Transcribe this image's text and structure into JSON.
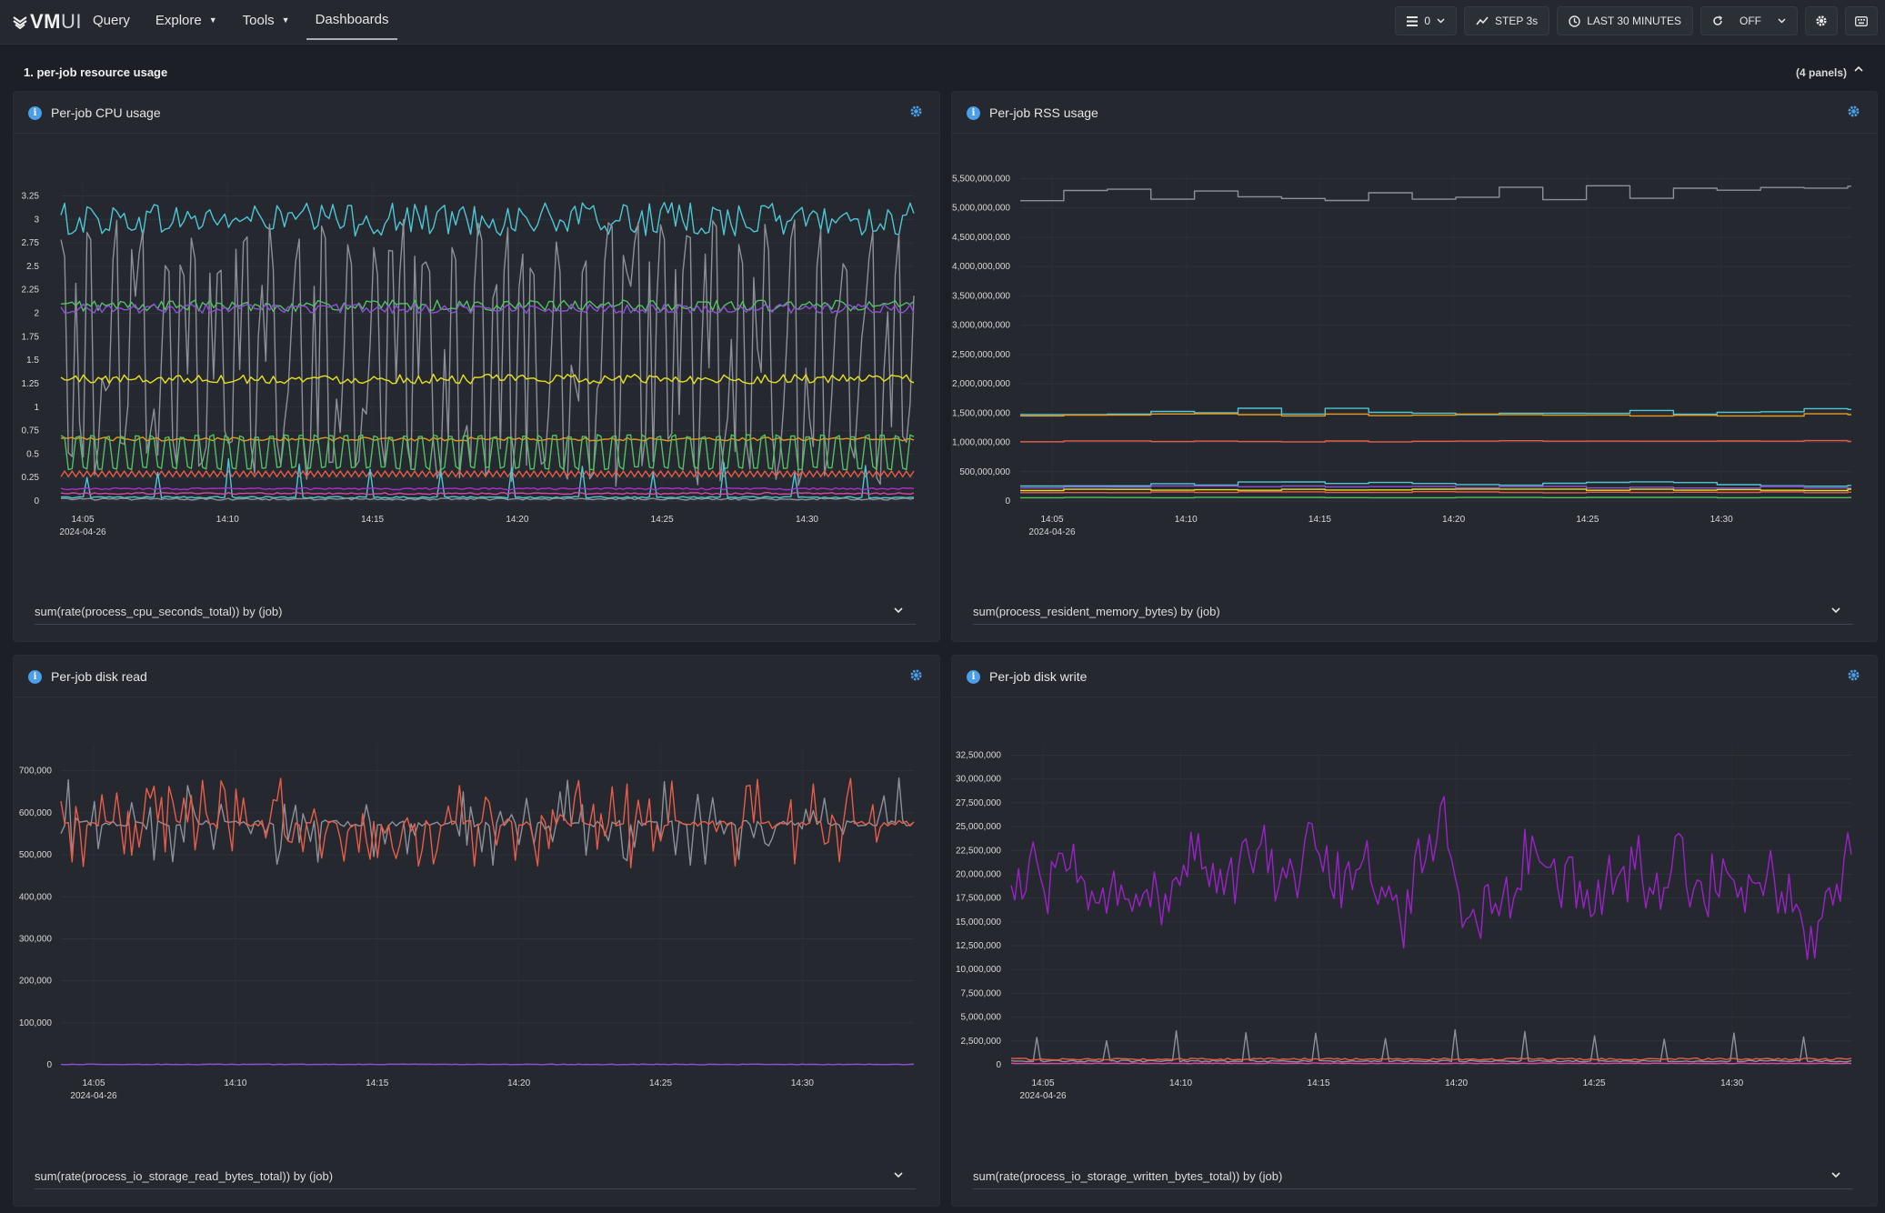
{
  "app": {
    "logo_main": "VM",
    "logo_ui": "UI"
  },
  "nav": {
    "items": [
      {
        "label": "Query"
      },
      {
        "label": "Explore"
      },
      {
        "label": "Tools"
      },
      {
        "label": "Dashboards"
      }
    ]
  },
  "controls": {
    "list_count": "0",
    "step": "STEP 3s",
    "range": "LAST 30 MINUTES",
    "refresh": "OFF"
  },
  "section": {
    "title": "1. per-job resource usage",
    "count": "(4 panels)"
  },
  "colors": {
    "cyan": "#4ec6d6",
    "green": "#52c064",
    "purple": "#8f4fd6",
    "yellow": "#e7e21e",
    "orange": "#e59a1f",
    "salmon": "#e85c4a",
    "gray": "#8c9099",
    "magenta": "#b02dd0",
    "pink": "#d84aa0",
    "violet": "#9b22c9"
  },
  "panels": [
    {
      "title": "Per-job CPU usage",
      "query": "sum(rate(process_cpu_seconds_total)) by (job)",
      "chart_data": {
        "type": "line",
        "x_ticks": [
          "14:05",
          "14:10",
          "14:15",
          "14:20",
          "14:25",
          "14:30"
        ],
        "x_date": "2024-04-26",
        "y_ticks": [
          "0",
          "0.25",
          "0.5",
          "0.75",
          "1",
          "1.25",
          "1.5",
          "1.75",
          "2",
          "2.25",
          "2.5",
          "2.75",
          "3",
          "3.25"
        ],
        "ylim": [
          0,
          3.4
        ],
        "series": [
          {
            "color": "cyan",
            "base": 3.0,
            "amp": 0.18,
            "kind": "noise"
          },
          {
            "color": "gray",
            "base": 1.5,
            "amp": 1.5,
            "kind": "spiky"
          },
          {
            "color": "green",
            "base": 2.08,
            "amp": 0.06,
            "kind": "noise"
          },
          {
            "color": "purple",
            "base": 2.05,
            "amp": 0.05,
            "kind": "noise"
          },
          {
            "color": "yellow",
            "base": 1.3,
            "amp": 0.05,
            "kind": "noise"
          },
          {
            "color": "orange",
            "base": 0.66,
            "amp": 0.02,
            "kind": "noise"
          },
          {
            "color": "green",
            "base": 0.52,
            "amp": 0.17,
            "kind": "square"
          },
          {
            "color": "salmon",
            "base": 0.29,
            "amp": 0.03,
            "kind": "zigzag"
          },
          {
            "color": "cyan",
            "base": 0.03,
            "amp": 0.35,
            "kind": "rarespike"
          },
          {
            "color": "magenta",
            "base": 0.13,
            "amp": 0.01,
            "kind": "noise"
          },
          {
            "color": "pink",
            "base": 0.08,
            "amp": 0.01,
            "kind": "noise"
          },
          {
            "color": "gray",
            "base": 0.02,
            "amp": 0.01,
            "kind": "noise"
          }
        ]
      }
    },
    {
      "title": "Per-job RSS usage",
      "query": "sum(process_resident_memory_bytes) by (job)",
      "chart_data": {
        "type": "line",
        "x_ticks": [
          "14:05",
          "14:10",
          "14:15",
          "14:20",
          "14:25",
          "14:30"
        ],
        "x_date": "2024-04-26",
        "y_ticks": [
          "0",
          "500,000,000",
          "1,000,000,000",
          "1,500,000,000",
          "2,000,000,000",
          "2,500,000,000",
          "3,000,000,000",
          "3,500,000,000",
          "4,000,000,000",
          "4,500,000,000",
          "5,000,000,000",
          "5,500,000,000"
        ],
        "ylim": [
          0,
          5600000000
        ],
        "series": [
          {
            "color": "gray",
            "base": 5250000000,
            "amp": 130000000,
            "kind": "step"
          },
          {
            "color": "cyan",
            "base": 1530000000,
            "amp": 60000000,
            "kind": "step"
          },
          {
            "color": "orange",
            "base": 1470000000,
            "amp": 20000000,
            "kind": "step"
          },
          {
            "color": "salmon",
            "base": 1020000000,
            "amp": 10000000,
            "kind": "step"
          },
          {
            "color": "cyan",
            "base": 290000000,
            "amp": 40000000,
            "kind": "step"
          },
          {
            "color": "purple",
            "base": 240000000,
            "amp": 20000000,
            "kind": "step"
          },
          {
            "color": "yellow",
            "base": 190000000,
            "amp": 15000000,
            "kind": "step"
          },
          {
            "color": "salmon",
            "base": 150000000,
            "amp": 10000000,
            "kind": "step"
          },
          {
            "color": "green",
            "base": 60000000,
            "amp": 5000000,
            "kind": "step"
          }
        ]
      }
    },
    {
      "title": "Per-job disk read",
      "query": "sum(rate(process_io_storage_read_bytes_total)) by (job)",
      "chart_data": {
        "type": "line",
        "x_ticks": [
          "14:05",
          "14:10",
          "14:15",
          "14:20",
          "14:25",
          "14:30"
        ],
        "x_date": "2024-04-26",
        "y_ticks": [
          "0",
          "100,000",
          "200,000",
          "300,000",
          "400,000",
          "500,000",
          "600,000",
          "700,000"
        ],
        "ylim": [
          0,
          760000
        ],
        "series": [
          {
            "color": "gray",
            "base": 575000,
            "amp": 90000,
            "kind": "burst"
          },
          {
            "color": "salmon",
            "base": 575000,
            "amp": 90000,
            "kind": "burst"
          },
          {
            "color": "purple",
            "base": 1000,
            "amp": 800,
            "kind": "noise"
          }
        ]
      }
    },
    {
      "title": "Per-job disk write",
      "query": "sum(rate(process_io_storage_written_bytes_total)) by (job)",
      "chart_data": {
        "type": "line",
        "x_ticks": [
          "14:05",
          "14:10",
          "14:15",
          "14:20",
          "14:25",
          "14:30"
        ],
        "x_date": "2024-04-26",
        "y_ticks": [
          "0",
          "2,500,000",
          "5,000,000",
          "7,500,000",
          "10,000,000",
          "12,500,000",
          "15,000,000",
          "17,500,000",
          "20,000,000",
          "22,500,000",
          "25,000,000",
          "27,500,000",
          "30,000,000",
          "32,500,000"
        ],
        "ylim": [
          0,
          33500000
        ],
        "series": [
          {
            "color": "violet",
            "base": 19500000,
            "amp": 6500000,
            "kind": "wild"
          },
          {
            "color": "gray",
            "base": 300000,
            "amp": 3500000,
            "kind": "rarespike"
          },
          {
            "color": "salmon",
            "base": 600000,
            "amp": 100000,
            "kind": "noise"
          },
          {
            "color": "pink",
            "base": 150000,
            "amp": 30000,
            "kind": "noise"
          }
        ]
      }
    }
  ]
}
